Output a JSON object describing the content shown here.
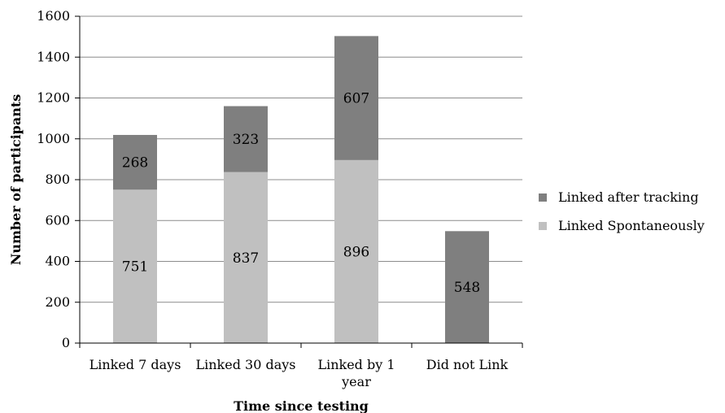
{
  "chart_data": {
    "type": "bar",
    "stacked": true,
    "categories": [
      "Linked 7 days",
      "Linked 30 days",
      "Linked by 1 year",
      "Did not Link"
    ],
    "category_label_lines": [
      [
        "Linked 7 days"
      ],
      [
        "Linked 30 days"
      ],
      [
        "Linked by 1",
        "year"
      ],
      [
        "Did not Link"
      ]
    ],
    "series": [
      {
        "name": "Linked Spontaneously",
        "values": [
          751,
          837,
          896,
          0
        ],
        "color": "#c0c0c0"
      },
      {
        "name": "Linked after tracking",
        "values": [
          268,
          323,
          607,
          548
        ],
        "color": "#7f7f7f"
      }
    ],
    "xlabel": "Time since testing",
    "ylabel": "Number of participants",
    "ylim": [
      0,
      1600
    ],
    "yticks": [
      0,
      200,
      400,
      600,
      800,
      1000,
      1200,
      1400,
      1600
    ],
    "grid": true,
    "legend_position": "right"
  }
}
